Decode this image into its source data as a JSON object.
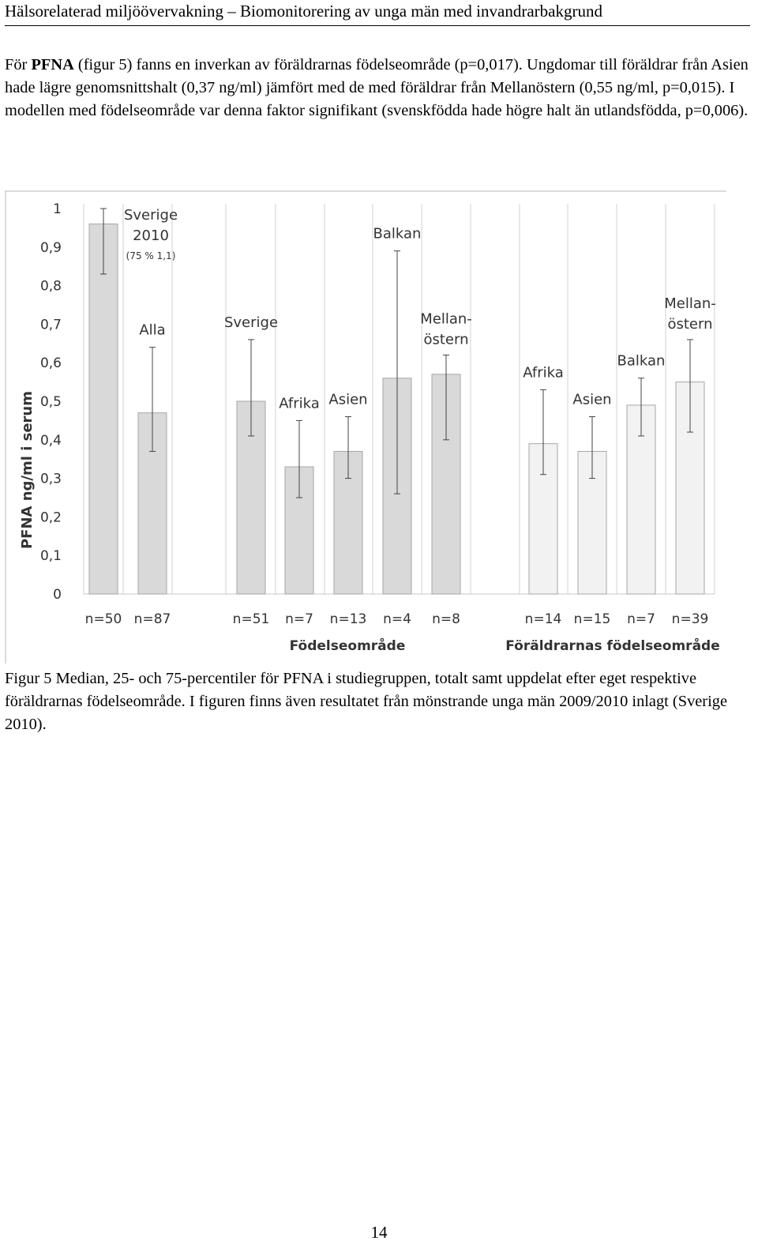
{
  "header": {
    "running_title": "Hälsorelaterad miljöövervakning – Biomonitorering av unga män med invandrarbakgrund"
  },
  "paragraph": {
    "prefix": "För ",
    "bold": "PFNA",
    "suffix": " (figur 5) fanns en inverkan av föräldrarnas födelseområde (p=0,017). Ungdomar till föräldrar från Asien hade lägre genomsnittshalt (0,37 ng/ml) jämfört med de med föräldrar från Mellanöstern (0,55 ng/ml, p=0,015). I modellen med födelseområde var denna faktor signifikant (svenskfödda hade högre halt än utlandsfödda, p=0,006)."
  },
  "chart_data": {
    "type": "bar",
    "ylabel": "PFNA ng/ml i serum",
    "ylim": [
      0,
      1
    ],
    "yticks": [
      "0",
      "0,1",
      "0,2",
      "0,3",
      "0,4",
      "0,5",
      "0,6",
      "0,7",
      "0,8",
      "0,9",
      "1"
    ],
    "yticks_values": [
      0,
      0.1,
      0.2,
      0.3,
      0.4,
      0.5,
      0.6,
      0.7,
      0.8,
      0.9,
      1.0
    ],
    "grid": false,
    "bars": [
      {
        "label": [
          "Sverige",
          "2010"
        ],
        "note": "(75 % 1,1)",
        "n": "n=50",
        "median": 0.96,
        "p25": 0.83,
        "p75": 1.0,
        "group": "ref"
      },
      {
        "label": [
          "Alla"
        ],
        "n": "n=87",
        "median": 0.47,
        "p25": 0.37,
        "p75": 0.64,
        "group": "ref"
      },
      {
        "label": [
          "Sverige"
        ],
        "n": "n=51",
        "median": 0.5,
        "p25": 0.41,
        "p75": 0.66,
        "group": "own"
      },
      {
        "label": [
          "Afrika"
        ],
        "n": "n=7",
        "median": 0.33,
        "p25": 0.25,
        "p75": 0.45,
        "group": "own"
      },
      {
        "label": [
          "Asien"
        ],
        "n": "n=13",
        "median": 0.37,
        "p25": 0.3,
        "p75": 0.46,
        "group": "own"
      },
      {
        "label": [
          "Balkan"
        ],
        "n": "n=4",
        "median": 0.56,
        "p25": 0.26,
        "p75": 0.89,
        "group": "own"
      },
      {
        "label": [
          "Mellan-",
          "östern"
        ],
        "n": "n=8",
        "median": 0.57,
        "p25": 0.4,
        "p75": 0.62,
        "group": "own"
      },
      {
        "label": [
          "Afrika"
        ],
        "n": "n=14",
        "median": 0.39,
        "p25": 0.31,
        "p75": 0.53,
        "group": "parents"
      },
      {
        "label": [
          "Asien"
        ],
        "n": "n=15",
        "median": 0.37,
        "p25": 0.3,
        "p75": 0.46,
        "group": "parents"
      },
      {
        "label": [
          "Balkan"
        ],
        "n": "n=7",
        "median": 0.49,
        "p25": 0.41,
        "p75": 0.56,
        "group": "parents"
      },
      {
        "label": [
          "Mellan-",
          "östern"
        ],
        "n": "n=39",
        "median": 0.55,
        "p25": 0.42,
        "p75": 0.66,
        "group": "parents"
      }
    ],
    "group_labels": {
      "own": "Födelseområde",
      "parents": "Föräldrarnas födelseområde"
    },
    "colors": {
      "bar_dark": "#d9d9d9",
      "bar_light": "#f2f2f2",
      "bar_edge": "#a6a6a6",
      "text": "#333333"
    }
  },
  "caption": "Figur 5 Median, 25- och 75-percentiler för PFNA i studiegruppen, totalt samt uppdelat efter eget respektive föräldrarnas födelseområde. I figuren finns även resultatet från mönstrande unga män 2009/2010 inlagt (Sverige 2010).",
  "page_number": "14"
}
